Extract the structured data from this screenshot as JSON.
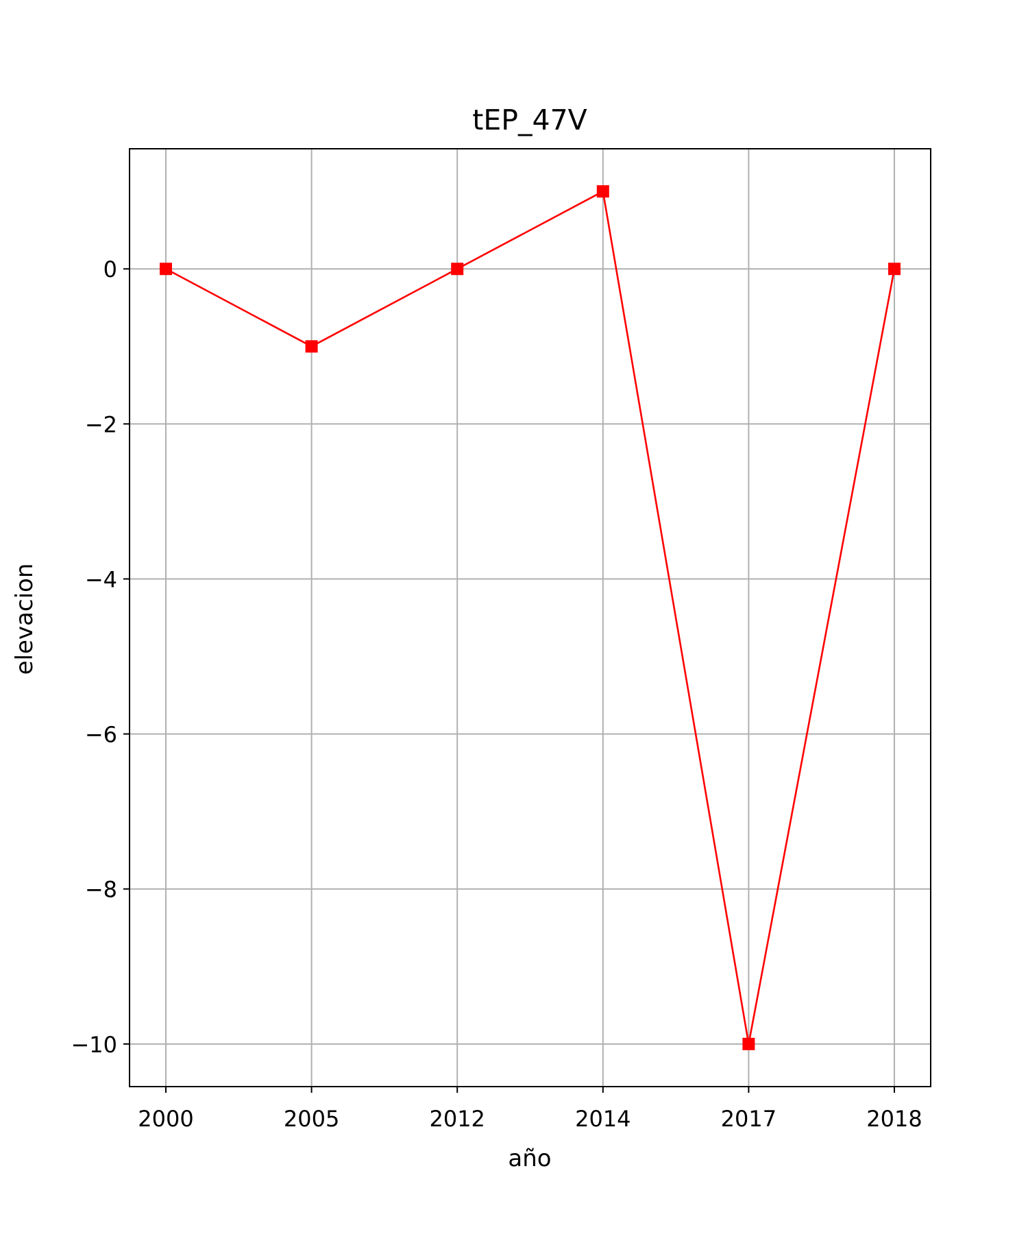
{
  "chart_data": {
    "type": "line",
    "title": "tEP_47V",
    "xlabel": "año",
    "ylabel": "elevacion",
    "categories": [
      "2000",
      "2005",
      "2012",
      "2014",
      "2017",
      "2018"
    ],
    "series": [
      {
        "values": [
          0,
          -1,
          0,
          1,
          -10,
          0
        ],
        "color": "#ff0000",
        "marker": "square"
      }
    ],
    "yticks": [
      0,
      -2,
      -4,
      -6,
      -8,
      -10
    ],
    "ytick_labels": [
      "0",
      "−2",
      "−4",
      "−6",
      "−8",
      "−10"
    ],
    "ylim": [
      -10.55,
      1.55
    ],
    "grid": true,
    "grid_color": "#b0b0b0",
    "axis_color": "#000000"
  }
}
